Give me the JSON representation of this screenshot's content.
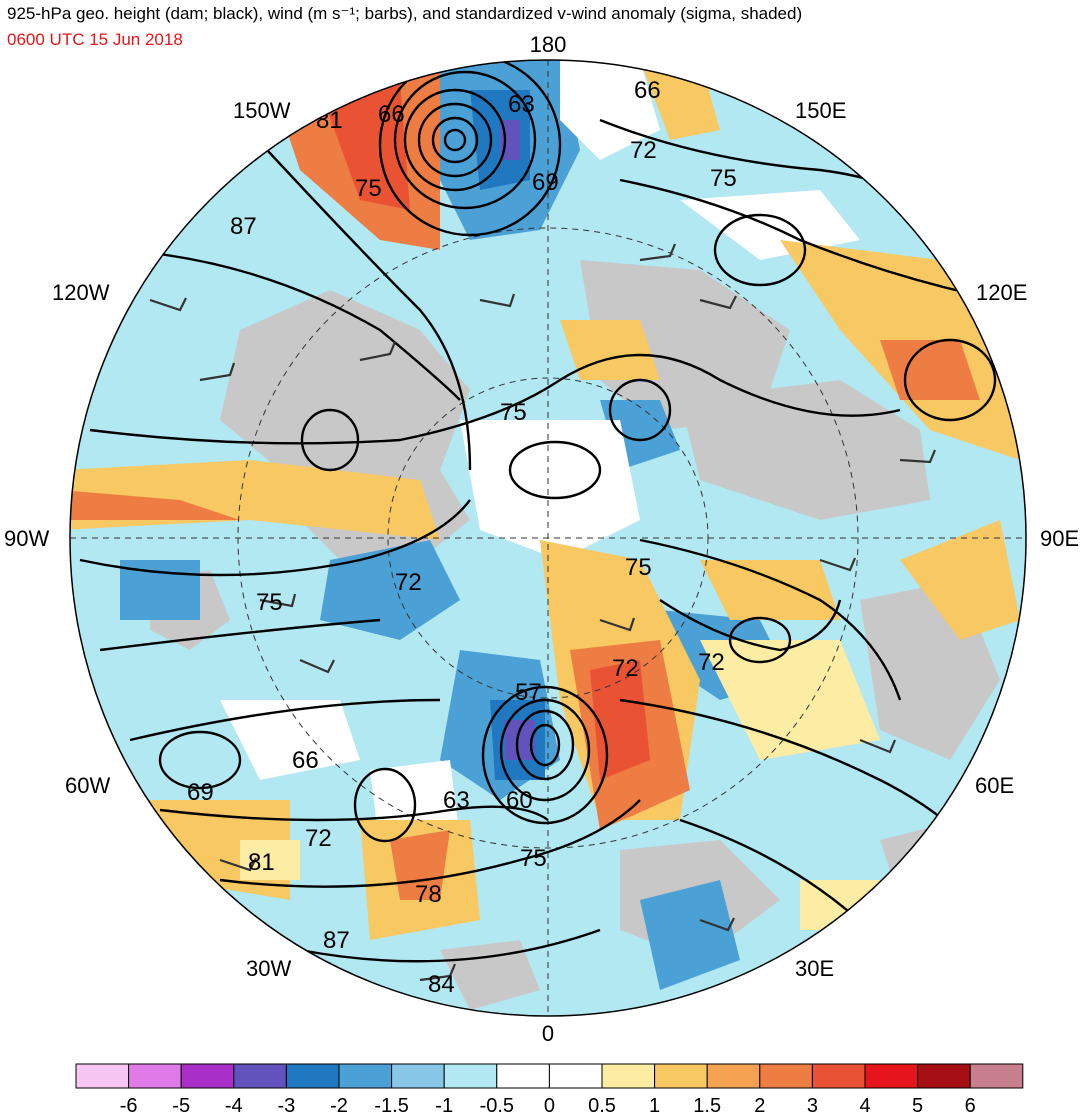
{
  "header": {
    "title": "925-hPa geo. height (dam; black), wind (m s⁻¹; barbs), and standardized v-wind anomaly (sigma, shaded)",
    "valid_time": "0600 UTC 15 Jun 2018"
  },
  "map": {
    "projection": "north polar stereographic",
    "longitude_labels": {
      "top": "180",
      "bottom": "0",
      "left": "90W",
      "right": "90E",
      "upper_left": "150W",
      "upper_right": "150E",
      "mid_left": "120W",
      "mid_right": "120E",
      "lower_left": "60W",
      "lower_right": "60E",
      "bottom_left": "30W",
      "bottom_right": "30E"
    },
    "contour_labels": [
      "81",
      "66",
      "63",
      "66",
      "72",
      "75",
      "75",
      "69",
      "87",
      "75",
      "75",
      "72",
      "72",
      "75",
      "72",
      "57",
      "66",
      "69",
      "63",
      "60",
      "72",
      "75",
      "81",
      "78",
      "87",
      "84"
    ]
  },
  "colorbar": {
    "ticks": [
      "-6",
      "-5",
      "-4",
      "-3",
      "-2",
      "-1.5",
      "-1",
      "-0.5",
      "0",
      "0.5",
      "1",
      "1.5",
      "2",
      "3",
      "4",
      "5",
      "6"
    ],
    "colors": [
      "#f7c6f3",
      "#e07ae8",
      "#a92fc9",
      "#6252bb",
      "#1f78c0",
      "#4ba0d6",
      "#87c6e6",
      "#b2e8f2",
      "#ffffff",
      "#ffffff",
      "#fdeca3",
      "#f8c862",
      "#f4a152",
      "#ee7d44",
      "#ea5234",
      "#e5151c",
      "#a50f15",
      "#c77f8d"
    ]
  }
}
